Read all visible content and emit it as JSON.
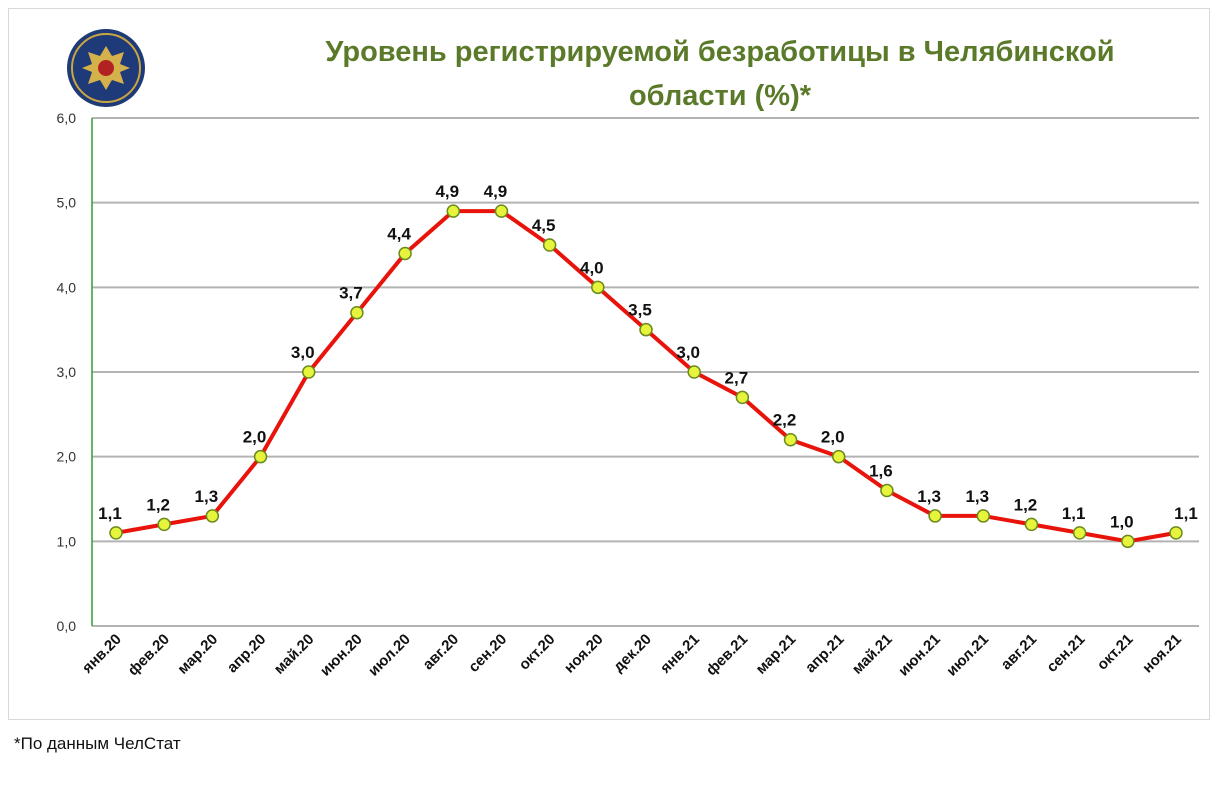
{
  "header": {
    "title_line1": "Уровень регистрируемой безработицы в Челябинской",
    "title_line2": "области (%)*"
  },
  "footnote": "*По данным ЧелСтат",
  "colors": {
    "line": "#e8140c",
    "marker_fill": "#e6f53c",
    "marker_stroke": "#6b8a1e",
    "grid": "#b3b3b3",
    "y_axis": "#2e9e3a",
    "title": "#5a7a2a"
  },
  "chart_data": {
    "type": "line",
    "title": "Уровень регистрируемой безработицы в Челябинской области (%)*",
    "xlabel": "",
    "ylabel": "",
    "ylim": [
      0,
      6
    ],
    "yticks": [
      "0,0",
      "1,0",
      "2,0",
      "3,0",
      "4,0",
      "5,0",
      "6,0"
    ],
    "grid": true,
    "legend": "none",
    "categories": [
      "янв.20",
      "фев.20",
      "мар.20",
      "апр.20",
      "май.20",
      "июн.20",
      "июл.20",
      "авг.20",
      "сен.20",
      "окт.20",
      "ноя.20",
      "дек.20",
      "янв.21",
      "фев.21",
      "мар.21",
      "апр.21",
      "май.21",
      "июн.21",
      "июл.21",
      "авг.21",
      "сен.21",
      "окт.21",
      "ноя.21"
    ],
    "values": [
      1.1,
      1.2,
      1.3,
      2.0,
      3.0,
      3.7,
      4.4,
      4.9,
      4.9,
      4.5,
      4.0,
      3.5,
      3.0,
      2.7,
      2.2,
      2.0,
      1.6,
      1.3,
      1.3,
      1.2,
      1.1,
      1.0,
      1.1
    ],
    "data_labels": [
      "1,1",
      "1,2",
      "1,3",
      "2,0",
      "3,0",
      "3,7",
      "4,4",
      "4,9",
      "4,9",
      "4,5",
      "4,0",
      "3,5",
      "3,0",
      "2,7",
      "2,2",
      "2,0",
      "1,6",
      "1,3",
      "1,3",
      "1,2",
      "1,1",
      "1,0",
      "1,1"
    ]
  }
}
